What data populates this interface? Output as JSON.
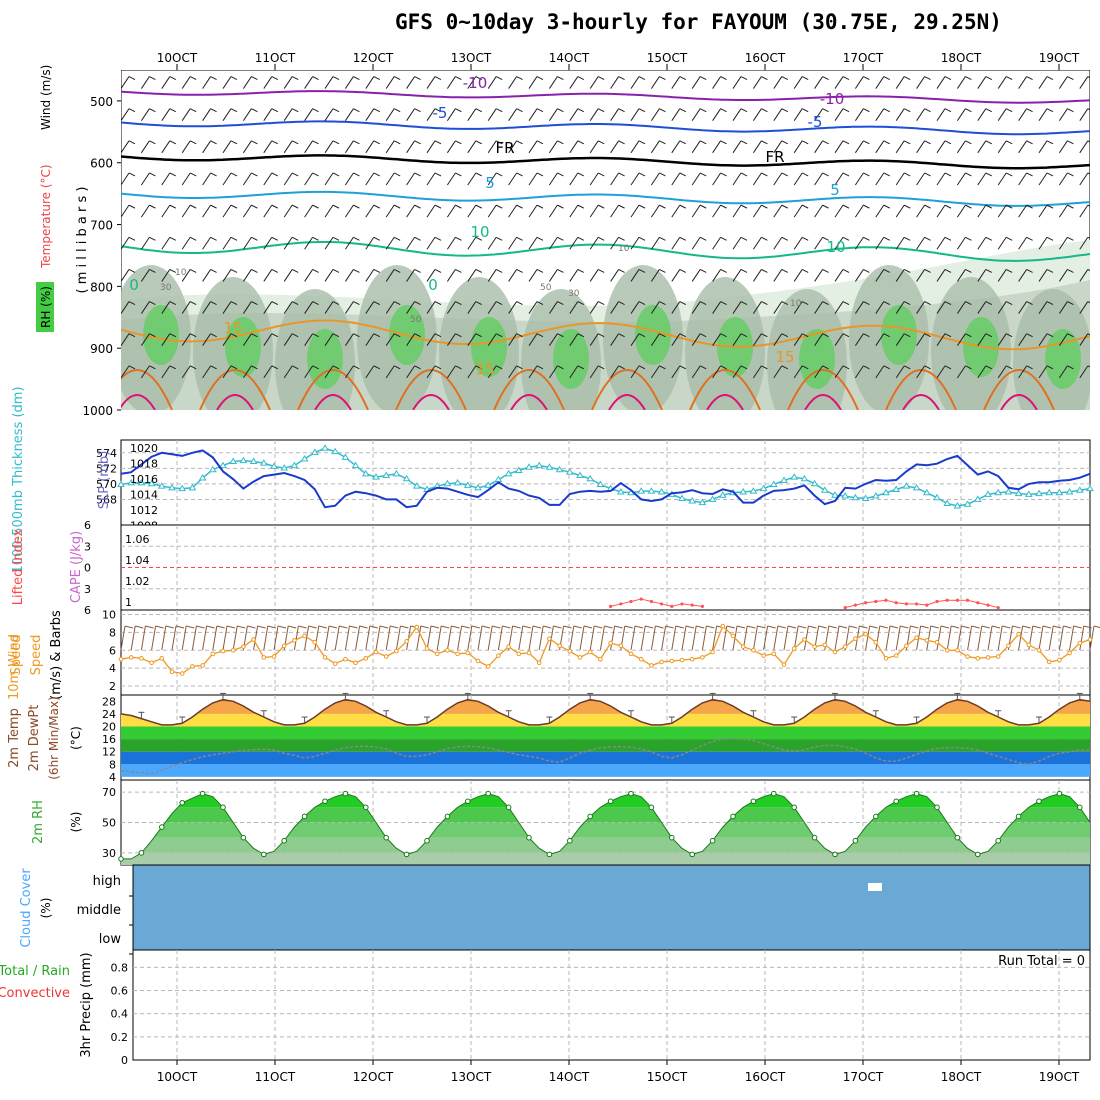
{
  "title": "GFS 0~10day 3-hourly for FAYOUM (30.75E, 29.25N)",
  "time_axis": {
    "labels": [
      "10OCT",
      "11OCT",
      "12OCT",
      "13OCT",
      "14OCT",
      "15OCT",
      "16OCT",
      "17OCT",
      "18OCT",
      "19OCT"
    ]
  },
  "colors": {
    "grid": "#b8b8b8",
    "slp": "#1a3acc",
    "thickness": "#33bbcc",
    "lifted": "#ff4444",
    "cape": "#cc66cc",
    "wind_speed": "#ee9922",
    "barb": "#8a5a3a",
    "temp_line": "#6b3a2a",
    "rh_green": "#22bb22",
    "cloud": "#6aa9d6",
    "precip_label_green": "#22aa22",
    "precip_label_red": "#ee3333"
  },
  "chart_data": [
    {
      "type": "contour",
      "panel": "upper-air",
      "ylabel_parts": [
        "RH (%)",
        "Temperature (°C)",
        "Wind (m/s)"
      ],
      "ylabel": "( m i l l i b a r s )",
      "yticks": [
        500,
        600,
        700,
        800,
        900,
        1000
      ],
      "ylim": [
        450,
        1000
      ],
      "isotherm_labels": [
        {
          "text": "-10",
          "level": -10
        },
        {
          "text": "-10",
          "level": -10
        },
        {
          "text": "-5",
          "level": -5
        },
        {
          "text": "-5",
          "level": -5
        },
        {
          "text": "FR",
          "level": 0
        },
        {
          "text": "FR",
          "level": 0
        },
        {
          "text": "5",
          "level": 5
        },
        {
          "text": "5",
          "level": 5
        },
        {
          "text": "10",
          "level": 10
        },
        {
          "text": "10",
          "level": 10
        },
        {
          "text": "15",
          "level": 15
        },
        {
          "text": "15",
          "level": 15
        },
        {
          "text": "15",
          "level": 15
        },
        {
          "text": "0",
          "level": 0
        },
        {
          "text": "0",
          "level": 0
        }
      ],
      "rh_labels": [
        "10",
        "30",
        "10",
        "50",
        "50",
        "30",
        "10"
      ]
    },
    {
      "type": "line",
      "panel": "slp-thickness",
      "ylabel_left": "1000-500mb Thickness (dm)",
      "ylabel_right": "SLP (mb)",
      "left_ticks": [
        "574",
        "572",
        "570",
        "568"
      ],
      "right_ticks": [
        "1020",
        "1018",
        "1016",
        "1014",
        "1012",
        "1008"
      ],
      "series": [
        {
          "name": "SLP (mb)",
          "values": [
            1017.3,
            1017.5,
            1018.5,
            1019.5,
            1020.0,
            1019.8,
            1019.6,
            1020.0,
            1020.3,
            1019.4,
            1017.6,
            1016.6,
            1015.4,
            1016.3,
            1017.0,
            1017.2,
            1017.4,
            1017.0,
            1016.5,
            1015.3,
            1013.0,
            1013.2,
            1014.5,
            1015.0,
            1014.8,
            1014.5,
            1014.0,
            1014.0,
            1013.0,
            1013.2,
            1015.0,
            1015.5,
            1015.4,
            1015.0,
            1014.6,
            1014.3,
            1015.2,
            1016.2,
            1015.4,
            1015.1,
            1014.5,
            1014.2,
            1013.3,
            1013.3,
            1014.7,
            1015.0,
            1015.1,
            1015.0,
            1015.1,
            1016.1,
            1015.2,
            1014.0,
            1013.8,
            1014.0,
            1014.8,
            1014.9,
            1015.2,
            1014.8,
            1014.7,
            1015.3,
            1015.0,
            1013.6,
            1013.6,
            1014.5,
            1015.1,
            1015.2,
            1015.4,
            1015.8,
            1014.5,
            1013.4,
            1013.8,
            1015.5,
            1015.4,
            1016.0,
            1016.5,
            1016.4,
            1016.5,
            1017.6,
            1018.5,
            1018.4,
            1018.6,
            1019.2,
            1019.6,
            1018.4,
            1017.2,
            1017.6,
            1017.0,
            1015.5,
            1015.3,
            1016.0,
            1016.2,
            1016.2,
            1016.4,
            1016.5,
            1016.8,
            1017.3
          ]
        },
        {
          "name": "1000-500mb Thickness (dm)",
          "values": [
            570.7,
            570.9,
            570.9,
            570.8,
            570.5,
            570.3,
            570.2,
            570.3,
            571.5,
            572.5,
            573.0,
            573.5,
            573.6,
            573.5,
            573.3,
            572.9,
            572.7,
            573.0,
            573.8,
            574.6,
            575.1,
            574.7,
            574.0,
            573.0,
            572.0,
            571.6,
            571.8,
            572.0,
            571.4,
            570.5,
            570.1,
            570.5,
            570.8,
            570.9,
            570.6,
            570.3,
            570.6,
            571.3,
            572.0,
            572.4,
            572.8,
            573.0,
            572.8,
            572.5,
            572.2,
            571.8,
            571.4,
            570.7,
            570.2,
            569.8,
            569.7,
            569.9,
            569.9,
            569.8,
            569.5,
            569.0,
            568.7,
            568.5,
            568.9,
            569.4,
            569.7,
            569.8,
            569.9,
            570.2,
            570.7,
            571.2,
            571.6,
            571.4,
            570.8,
            570.0,
            569.4,
            569.3,
            569.1,
            569.0,
            569.3,
            569.7,
            570.1,
            570.5,
            570.3,
            569.7,
            569.1,
            568.4,
            568.1,
            568.3,
            568.9,
            569.5,
            569.7,
            569.8,
            569.6,
            569.5,
            569.6,
            569.7,
            569.7,
            569.8,
            570.0,
            570.2
          ]
        }
      ]
    },
    {
      "type": "line",
      "panel": "lifted-cape",
      "ylabel_left": "Lifted Index",
      "ylabel_right": "CAPE (J/kg)",
      "left_ticks": [
        "6",
        "3",
        "0",
        "3",
        "6"
      ],
      "right_ticks": [
        "1.06",
        "1.04",
        "1.02",
        "1"
      ],
      "series": [
        {
          "name": "Lifted Index",
          "values": [
            6,
            6,
            6,
            6,
            6,
            6,
            6,
            6,
            6,
            6,
            6,
            6,
            6,
            6,
            6,
            6,
            6,
            6,
            6,
            6,
            6,
            6,
            6,
            6,
            6,
            6,
            6,
            6,
            6,
            6,
            6,
            6,
            6,
            6,
            6,
            6,
            6,
            6,
            6,
            6,
            6,
            6,
            6,
            6,
            6,
            6,
            6,
            6,
            5.8,
            5.9,
            5.9,
            6,
            6,
            6,
            6,
            6,
            6,
            6,
            6,
            6,
            6,
            6,
            6,
            6,
            6,
            6,
            6,
            6,
            6,
            6,
            6,
            6,
            6,
            6,
            6,
            6,
            6,
            6,
            6,
            6,
            6,
            6,
            6,
            6,
            6,
            6,
            6,
            6,
            6,
            6,
            6,
            6,
            6,
            6,
            6,
            6
          ]
        },
        {
          "name": "CAPE (J/kg)",
          "values": [
            1,
            1,
            1,
            1,
            1,
            1,
            1,
            1,
            1,
            1,
            1,
            1,
            1,
            1,
            1,
            1,
            1,
            1,
            1,
            1,
            1,
            1,
            1,
            1,
            1,
            1,
            1,
            1,
            1,
            1,
            1,
            1,
            1,
            1,
            1,
            1,
            1,
            1,
            1,
            1,
            1,
            1,
            1,
            1,
            1,
            1,
            1,
            1,
            1.003,
            1.005,
            1.007,
            1.009,
            1.007,
            1.005,
            1.003,
            1.005,
            1.004,
            1.003,
            1,
            1,
            1,
            1,
            1,
            1,
            1,
            1,
            1,
            1,
            1,
            1,
            1,
            1.002,
            1.004,
            1.006,
            1.007,
            1.008,
            1.006,
            1.005,
            1.005,
            1.004,
            1.007,
            1.008,
            1.008,
            1.008,
            1.006,
            1.004,
            1.002,
            1,
            1,
            1,
            1,
            1,
            1,
            1,
            1,
            1
          ]
        }
      ]
    },
    {
      "type": "line",
      "panel": "wind-10m",
      "ylabel": "10m Wind Speed (m/s) & Barbs",
      "yticks": [
        "10",
        "8",
        "6",
        "4",
        "2"
      ],
      "ylim": [
        1,
        10.5
      ],
      "series": [
        {
          "name": "10m Wind Speed (m/s)",
          "values": [
            5.0,
            5.2,
            5.1,
            4.6,
            5.1,
            3.6,
            3.4,
            4.2,
            4.3,
            5.6,
            5.9,
            6.0,
            6.4,
            7.2,
            5.2,
            5.3,
            6.5,
            7.1,
            7.6,
            6.9,
            5.2,
            4.5,
            5.0,
            4.6,
            5.1,
            5.8,
            5.3,
            5.9,
            7.0,
            8.6,
            6.2,
            5.6,
            6.0,
            5.6,
            5.7,
            4.8,
            4.2,
            5.4,
            6.4,
            5.6,
            5.7,
            4.6,
            7.3,
            6.5,
            5.9,
            5.2,
            5.8,
            5.0,
            6.8,
            6.5,
            5.6,
            5.0,
            4.3,
            4.7,
            4.8,
            4.9,
            5.0,
            5.2,
            5.8,
            8.7,
            7.6,
            6.4,
            6.0,
            5.4,
            5.6,
            4.4,
            6.2,
            7.2,
            6.4,
            6.6,
            5.8,
            6.4,
            7.3,
            7.8,
            6.9,
            5.1,
            5.4,
            6.5,
            7.4,
            7.1,
            6.9,
            6.0,
            6.0,
            5.3,
            5.1,
            5.2,
            5.3,
            6.5,
            7.8,
            6.6,
            6.0,
            4.7,
            4.9,
            5.7,
            6.8,
            7.2
          ]
        }
      ]
    },
    {
      "type": "area",
      "panel": "temp-2m",
      "ylabel": "2m Temp 2m DewPt (6hr Min/Max) (°C)",
      "yticks": [
        "28",
        "24",
        "20",
        "16",
        "12",
        "8",
        "4"
      ],
      "ylim": [
        3,
        30
      ],
      "series": [
        {
          "name": "2m Temp",
          "values": [
            24.0,
            23.5,
            22.5,
            21.5,
            20.5,
            20.5,
            21.0,
            23.0,
            25.5,
            27.5,
            28.5,
            28.0,
            26.5,
            24.5,
            23.0,
            21.5,
            20.5,
            20.5,
            21.0,
            23.0,
            25.5,
            27.5,
            28.5,
            28.0,
            26.5,
            24.5,
            23.0,
            21.5,
            20.5,
            20.5,
            21.0,
            23.0,
            25.5,
            27.5,
            28.5,
            28.0,
            26.5,
            24.5,
            23.0,
            21.5,
            20.5,
            20.5,
            21.0,
            23.0,
            25.5,
            27.5,
            28.5,
            28.0,
            26.5,
            24.5,
            23.0,
            21.5,
            20.5,
            20.5,
            21.0,
            23.0,
            25.5,
            27.5,
            28.5,
            28.0,
            26.5,
            24.5,
            23.0,
            21.5,
            20.5,
            20.5,
            21.0,
            23.0,
            25.5,
            27.5,
            28.5,
            28.0,
            26.5,
            24.5,
            23.0,
            21.5,
            20.5,
            20.5,
            21.0,
            23.0,
            25.5,
            27.5,
            28.5,
            28.0,
            26.5,
            24.5,
            23.0,
            21.5,
            20.5,
            20.5,
            21.0,
            23.0,
            25.5,
            27.5,
            28.5,
            28.0
          ]
        },
        {
          "name": "2m DewPt",
          "values": [
            6.0,
            5.6,
            5.3,
            5.0,
            6.0,
            7.5,
            8.5,
            9.5,
            10.4,
            11.0,
            11.5,
            12.0,
            12.4,
            12.7,
            12.8,
            12.5,
            11.5,
            10.8,
            10.0,
            10.5,
            11.5,
            12.5,
            13.3,
            13.6,
            13.7,
            13.5,
            12.8,
            11.5,
            10.5,
            10.5,
            11.0,
            12.0,
            13.0,
            13.5,
            13.7,
            13.6,
            13.2,
            12.5,
            11.8,
            11.0,
            10.5,
            10.0,
            9.0,
            8.7,
            10.0,
            11.5,
            12.5,
            13.2,
            13.5,
            13.6,
            13.4,
            12.8,
            12.0,
            10.5,
            10.0,
            11.0,
            12.5,
            14.0,
            15.3,
            16.0,
            16.2,
            16.0,
            15.5,
            14.5,
            13.5,
            12.5,
            12.2,
            12.6,
            13.5,
            14.0,
            14.0,
            13.5,
            12.8,
            11.5,
            10.0,
            9.0,
            9.0,
            10.0,
            11.2,
            12.3,
            13.0,
            13.3,
            13.3,
            13.1,
            12.5,
            11.5,
            10.5,
            9.5,
            8.5,
            8.0,
            9.0,
            10.5,
            11.5,
            12.0,
            12.5,
            12.6
          ]
        }
      ]
    },
    {
      "type": "area",
      "panel": "rh-2m",
      "ylabel": "2m RH (%)",
      "yticks": [
        "70",
        "50",
        "30"
      ],
      "ylim": [
        22,
        78
      ],
      "series": [
        {
          "name": "2m RH (%)",
          "values": [
            26,
            26,
            30,
            38,
            47,
            56,
            63,
            66,
            69,
            67,
            60,
            50,
            40,
            33,
            29,
            31,
            38,
            47,
            54,
            60,
            64,
            67,
            69,
            67,
            60,
            50,
            40,
            33,
            29,
            31,
            38,
            47,
            54,
            60,
            64,
            67,
            69,
            67,
            60,
            50,
            40,
            33,
            29,
            31,
            38,
            47,
            54,
            60,
            64,
            67,
            69,
            67,
            60,
            50,
            40,
            33,
            29,
            31,
            38,
            47,
            54,
            60,
            64,
            67,
            69,
            67,
            60,
            50,
            40,
            33,
            29,
            31,
            38,
            47,
            54,
            60,
            64,
            67,
            69,
            67,
            60,
            50,
            40,
            33,
            29,
            31,
            38,
            47,
            54,
            60,
            64,
            67,
            69,
            67,
            60,
            50
          ]
        }
      ]
    },
    {
      "type": "heatmap",
      "panel": "cloud-cover",
      "ylabel": "Cloud Cover (%)",
      "yticks": [
        "high",
        "middle",
        "low"
      ]
    },
    {
      "type": "bar",
      "panel": "precip-3hr",
      "ylabel": "3hr Precip (mm)",
      "label_green": "Total / Rain",
      "label_red": "Convective",
      "yticks": [
        "0.8",
        "0.6",
        "0.4",
        "0.2",
        "0"
      ],
      "ylim": [
        0,
        0.95
      ],
      "run_total": "Run Total = 0",
      "values": [
        0,
        0,
        0,
        0,
        0,
        0,
        0,
        0,
        0,
        0,
        0,
        0,
        0,
        0,
        0,
        0,
        0,
        0,
        0,
        0,
        0,
        0,
        0,
        0,
        0,
        0,
        0,
        0,
        0,
        0,
        0,
        0,
        0,
        0,
        0,
        0,
        0,
        0,
        0,
        0,
        0,
        0,
        0,
        0,
        0,
        0,
        0,
        0,
        0,
        0,
        0,
        0,
        0,
        0,
        0,
        0,
        0,
        0,
        0,
        0,
        0,
        0,
        0,
        0,
        0,
        0,
        0,
        0,
        0,
        0,
        0,
        0,
        0,
        0,
        0,
        0,
        0,
        0,
        0,
        0,
        0,
        0,
        0,
        0,
        0,
        0,
        0,
        0,
        0,
        0,
        0,
        0,
        0,
        0,
        0,
        0
      ]
    }
  ]
}
